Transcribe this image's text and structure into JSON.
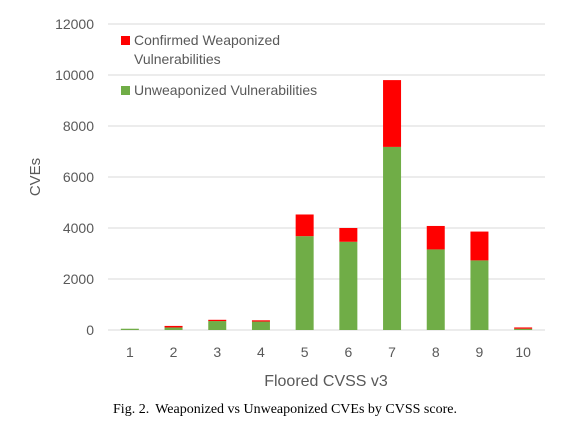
{
  "chart_data": {
    "type": "bar",
    "stacked": true,
    "categories": [
      "1",
      "2",
      "3",
      "4",
      "5",
      "6",
      "7",
      "8",
      "9",
      "10"
    ],
    "series": [
      {
        "name": "Unweaponized Vulnerabilities",
        "color": "#70ad47",
        "values": [
          50,
          100,
          350,
          330,
          3680,
          3460,
          7180,
          3160,
          2730,
          50
        ]
      },
      {
        "name": "Confirmed Weaponized Vulnerabilities",
        "color": "#ff0000",
        "values": [
          0,
          60,
          50,
          50,
          850,
          540,
          2620,
          920,
          1130,
          50
        ]
      }
    ],
    "xlabel": "Floored CVSS v3",
    "ylabel": "CVEs",
    "ylim": [
      0,
      12000
    ],
    "yticks": [
      "0",
      "2000",
      "4000",
      "6000",
      "8000",
      "10000",
      "12000"
    ],
    "grid": true,
    "legend": [
      {
        "label_lines": [
          "Confirmed Weaponized",
          "Vulnerabilities"
        ],
        "color": "#ff0000"
      },
      {
        "label_lines": [
          "Unweaponized Vulnerabilities"
        ],
        "color": "#70ad47"
      }
    ],
    "legend_position": "top-left"
  },
  "caption": {
    "figure": "Fig. 2.",
    "text": "Weaponized vs Unweaponized CVEs by CVSS score."
  }
}
